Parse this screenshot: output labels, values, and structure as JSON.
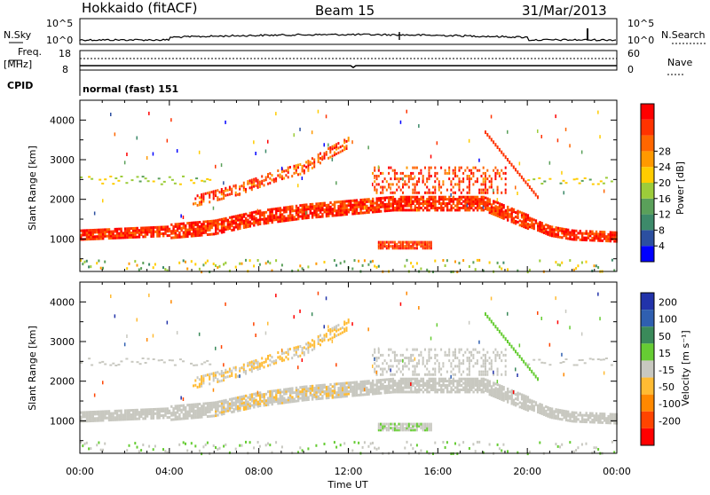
{
  "header": {
    "title": "Hokkaido (fitACF)",
    "beam": "Beam 15",
    "date": "31/Mar/2013"
  },
  "noise_panel": {
    "left_label": "N.Sky",
    "left_ticks": [
      "10^5",
      "10^0"
    ],
    "right_ticks": [
      "10^5",
      "10^0"
    ],
    "right_label": "N.Search"
  },
  "freq_panel": {
    "left_label_top": "Freq.",
    "left_label_unit": "[MHz]",
    "left_ticks": [
      "18",
      "8"
    ],
    "right_ticks": [
      "60",
      "0"
    ],
    "right_label": "Nave"
  },
  "cpid_panel": {
    "label": "CPID",
    "mode": "normal (fast) 151"
  },
  "x_axis": {
    "label": "Time UT",
    "ticks": [
      "00:00",
      "04:00",
      "08:00",
      "12:00",
      "16:00",
      "20:00",
      "00:00"
    ]
  },
  "colors": {
    "power_scale": [
      "#0000ff",
      "#2c4fa0",
      "#3d8a6a",
      "#5aa05a",
      "#9ccc3a",
      "#ffcc00",
      "#ff9900",
      "#ff6600",
      "#ff3300",
      "#ff0000"
    ],
    "velocity_scale": [
      "#2233aa",
      "#2f5fb0",
      "#3a8a5a",
      "#66cc33",
      "#c8c8c0",
      "#ffbb33",
      "#ff8800",
      "#ff4400",
      "#ff0000"
    ]
  },
  "chart_data": [
    {
      "type": "heatmap",
      "panel": "power",
      "ylabel": "Slant Range [km]",
      "yticks": [
        "1000",
        "2000",
        "3000",
        "4000"
      ],
      "xlabel": "Time UT",
      "xlim": [
        "00:00",
        "24:00"
      ],
      "ylim": [
        180,
        4500
      ],
      "colorbar": {
        "label": "Power [dB]",
        "ticks": [
          "4",
          "8",
          "12",
          "16",
          "20",
          "24",
          "28"
        ],
        "range": [
          0,
          30
        ]
      },
      "features": [
        {
          "name": "main-band",
          "x": [
            0,
            2,
            4,
            6,
            8,
            10,
            12,
            14,
            16,
            18,
            19.5,
            21,
            22,
            24
          ],
          "range_km": [
            1150,
            1200,
            1250,
            1350,
            1600,
            1750,
            1850,
            1950,
            1950,
            1950,
            1600,
            1250,
            1150,
            1100
          ],
          "power_db": 27
        },
        {
          "name": "upper-band",
          "x": [
            5,
            6,
            7,
            8,
            9,
            10,
            11,
            12
          ],
          "range_km": [
            2000,
            2150,
            2300,
            2500,
            2700,
            2850,
            3200,
            3500
          ],
          "power_db": 24
        },
        {
          "name": "sporadic-echo",
          "x": [
            13.3,
            15.7
          ],
          "range_km": [
            900,
            900
          ],
          "power_db": 25
        }
      ]
    },
    {
      "type": "heatmap",
      "panel": "velocity",
      "ylabel": "Slant Range [km]",
      "yticks": [
        "1000",
        "2000",
        "3000",
        "4000"
      ],
      "xlabel": "Time UT",
      "xlim": [
        "00:00",
        "24:00"
      ],
      "ylim": [
        180,
        4500
      ],
      "colorbar": {
        "label": "Velocity [m s⁻¹]",
        "ticks": [
          "200",
          "100",
          "50",
          "15",
          "-15",
          "-50",
          "-100",
          "-200"
        ],
        "range": [
          -250,
          250
        ]
      }
    }
  ]
}
